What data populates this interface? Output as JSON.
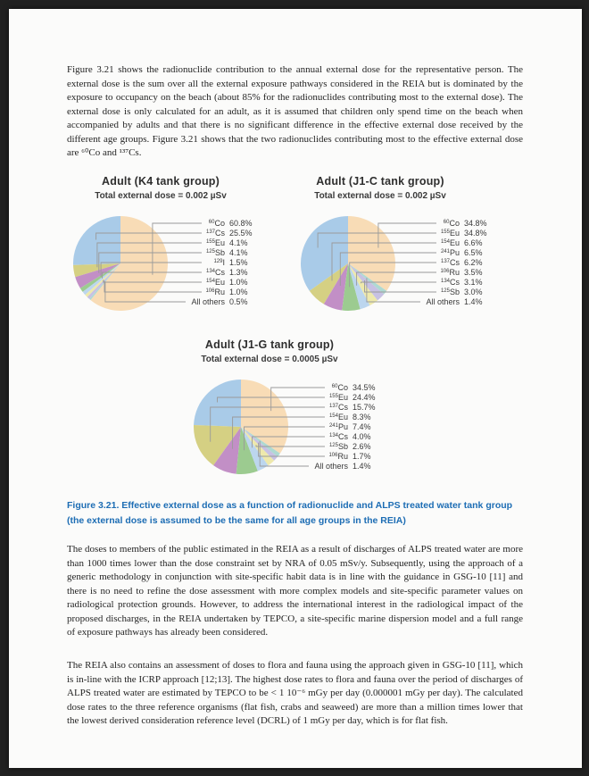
{
  "page": {
    "paragraph1": "Figure 3.21 shows the radionuclide contribution to the annual external dose for the representative person. The external dose is the sum over all the external exposure pathways considered in the REIA but is dominated by the exposure to occupancy on the beach (about 85% for the radionuclides contributing most to the external dose). The external dose is only calculated for an adult, as it is assumed that children only spend time on the beach when accompanied by adults and that there is no significant difference in the effective external dose received by the different age groups. Figure 3.21 shows that the two radionuclides contributing most to the effective external dose are ⁶⁰Co and ¹³⁷Cs.",
    "caption": "Figure 3.21. Effective external dose as a function of radionuclide and ALPS treated water tank group (the external dose is assumed to be the same for all age groups in the REIA)",
    "paragraph2": "The doses to members of the public estimated in the REIA as a result of discharges of ALPS treated water are more than 1000 times lower than the dose constraint set by NRA of 0.05 mSv/y. Subsequently, using the approach of a generic methodology in conjunction with site-specific habit data is in line with the guidance in GSG-10 [11] and there is no need to refine the dose assessment with more complex models and site-specific parameter values on radiological protection grounds. However, to address the international interest in the radiological impact of the proposed discharges, in the REIA undertaken by TEPCO, a site-specific marine dispersion model and a full range of exposure pathways has already been considered.",
    "paragraph3": "The REIA also contains an assessment of doses to flora and fauna using the approach given in GSG-10 [11], which is in-line with the ICRP approach [12;13]. The highest dose rates to flora and fauna over the period of discharges of ALPS treated water are estimated by TEPCO to be < 1 10⁻⁶ mGy per day (0.000001 mGy per day).  The calculated dose rates to the three reference organisms (flat fish, crabs and seaweed) are more than a million times lower that the lowest derived consideration reference level (DCRL) of 1 mGy per day, which is for flat fish."
  },
  "colors": {
    "caption_blue": "#1d6db4",
    "leader_line": "#9a9a9a",
    "pie_palette": [
      "#f8dcb6",
      "#a9cbe8",
      "#d5d083",
      "#c28fc6",
      "#9ccb90",
      "#bcd6ee",
      "#eee9ac",
      "#c7c1e3",
      "#aed9d2"
    ]
  },
  "chart_data": [
    {
      "type": "pie",
      "title": "Adult (K4 tank group)",
      "subtitle": "Total external dose = 0.002 µSv",
      "legend_position": "right",
      "slices": [
        {
          "mass": "60",
          "symbol": "Co",
          "pct": 60.8,
          "pct_label": "60.8%"
        },
        {
          "mass": "137",
          "symbol": "Cs",
          "pct": 25.5,
          "pct_label": "25.5%"
        },
        {
          "mass": "155",
          "symbol": "Eu",
          "pct": 4.1,
          "pct_label": "4.1%"
        },
        {
          "mass": "125",
          "symbol": "Sb",
          "pct": 4.1,
          "pct_label": "4.1%"
        },
        {
          "mass": "129",
          "symbol": "I",
          "pct": 1.5,
          "pct_label": "1.5%"
        },
        {
          "mass": "134",
          "symbol": "Cs",
          "pct": 1.3,
          "pct_label": "1.3%"
        },
        {
          "mass": "154",
          "symbol": "Eu",
          "pct": 1.0,
          "pct_label": "1.0%"
        },
        {
          "mass": "106",
          "symbol": "Ru",
          "pct": 1.0,
          "pct_label": "1.0%"
        },
        {
          "name": "All others",
          "pct": 0.5,
          "pct_label": "0.5%"
        }
      ]
    },
    {
      "type": "pie",
      "title": "Adult (J1-C tank group)",
      "subtitle": "Total external dose = 0.002 µSv",
      "legend_position": "right",
      "slices": [
        {
          "mass": "60",
          "symbol": "Co",
          "pct": 34.8,
          "pct_label": "34.8%"
        },
        {
          "mass": "155",
          "symbol": "Eu",
          "pct": 34.8,
          "pct_label": "34.8%"
        },
        {
          "mass": "154",
          "symbol": "Eu",
          "pct": 6.6,
          "pct_label": "6.6%"
        },
        {
          "mass": "241",
          "symbol": "Pu",
          "pct": 6.5,
          "pct_label": "6.5%"
        },
        {
          "mass": "137",
          "symbol": "Cs",
          "pct": 6.2,
          "pct_label": "6.2%"
        },
        {
          "mass": "106",
          "symbol": "Ru",
          "pct": 3.5,
          "pct_label": "3.5%"
        },
        {
          "mass": "134",
          "symbol": "Cs",
          "pct": 3.1,
          "pct_label": "3.1%"
        },
        {
          "mass": "125",
          "symbol": "Sb",
          "pct": 3.0,
          "pct_label": "3.0%"
        },
        {
          "name": "All others",
          "pct": 1.4,
          "pct_label": "1.4%"
        }
      ]
    },
    {
      "type": "pie",
      "title": "Adult (J1-G tank group)",
      "subtitle": "Total external dose = 0.0005 µSv",
      "legend_position": "right",
      "slices": [
        {
          "mass": "60",
          "symbol": "Co",
          "pct": 34.5,
          "pct_label": "34.5%"
        },
        {
          "mass": "155",
          "symbol": "Eu",
          "pct": 24.4,
          "pct_label": "24.4%"
        },
        {
          "mass": "137",
          "symbol": "Cs",
          "pct": 15.7,
          "pct_label": "15.7%"
        },
        {
          "mass": "154",
          "symbol": "Eu",
          "pct": 8.3,
          "pct_label": "8.3%"
        },
        {
          "mass": "241",
          "symbol": "Pu",
          "pct": 7.4,
          "pct_label": "7.4%"
        },
        {
          "mass": "134",
          "symbol": "Cs",
          "pct": 4.0,
          "pct_label": "4.0%"
        },
        {
          "mass": "125",
          "symbol": "Sb",
          "pct": 2.6,
          "pct_label": "2.6%"
        },
        {
          "mass": "106",
          "symbol": "Ru",
          "pct": 1.7,
          "pct_label": "1.7%"
        },
        {
          "name": "All others",
          "pct": 1.4,
          "pct_label": "1.4%"
        }
      ]
    }
  ]
}
